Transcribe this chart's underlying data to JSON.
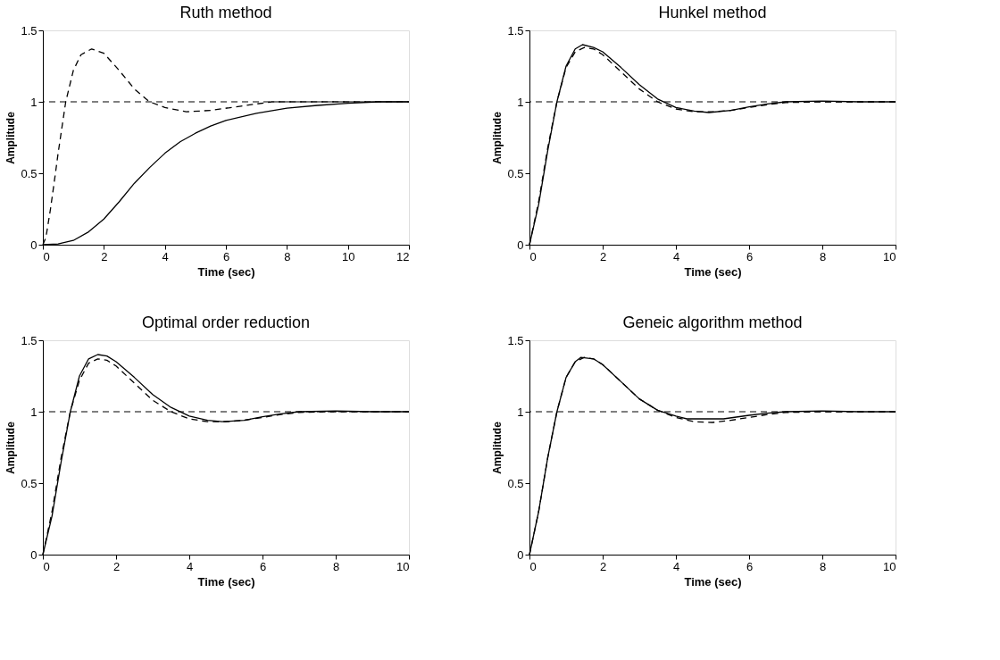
{
  "chart_data": [
    {
      "type": "line",
      "title": "Ruth method",
      "xlabel": "Time (sec)",
      "ylabel": "Amplitude",
      "xlim": [
        0,
        12
      ],
      "ylim": [
        0,
        1.5
      ],
      "xticks": [
        0,
        2,
        4,
        6,
        8,
        10,
        12
      ],
      "yticks": [
        0,
        0.5,
        1,
        1.5
      ],
      "grid": false,
      "marker": "none",
      "series": [
        {
          "color": "#000000",
          "line_style": "dashed",
          "x": [
            0,
            0.1,
            0.25,
            0.4,
            0.5,
            0.75,
            1.0,
            1.25,
            1.6,
            2.0,
            2.5,
            3.0,
            3.5,
            4.0,
            4.7,
            5.5,
            6.5,
            7.5,
            9,
            10.5,
            12
          ],
          "values": [
            0,
            0.05,
            0.25,
            0.48,
            0.64,
            1.0,
            1.22,
            1.33,
            1.37,
            1.34,
            1.22,
            1.09,
            1.0,
            0.96,
            0.93,
            0.94,
            0.97,
            1.0,
            1.0,
            1.0,
            1.0
          ]
        },
        {
          "color": "#000000",
          "line_style": "solid",
          "x": [
            0,
            0.5,
            1,
            1.5,
            2,
            2.5,
            3,
            3.5,
            4,
            4.5,
            5,
            5.5,
            6,
            7,
            8,
            9,
            10,
            11,
            12
          ],
          "values": [
            0,
            0.005,
            0.03,
            0.09,
            0.18,
            0.3,
            0.43,
            0.54,
            0.64,
            0.72,
            0.78,
            0.83,
            0.87,
            0.92,
            0.955,
            0.975,
            0.99,
            1.0,
            1.0
          ]
        }
      ],
      "ref_lines": [
        {
          "axis": "y",
          "value": 1,
          "color": "#000000",
          "line_style": "dashed"
        }
      ]
    },
    {
      "type": "line",
      "title": "Hunkel method",
      "xlabel": "Time (sec)",
      "ylabel": "Amplitude",
      "xlim": [
        0,
        10
      ],
      "ylim": [
        0,
        1.5
      ],
      "xticks": [
        0,
        2,
        4,
        6,
        8,
        10
      ],
      "yticks": [
        0,
        0.5,
        1,
        1.5
      ],
      "grid": false,
      "marker": "none",
      "series": [
        {
          "color": "#000000",
          "line_style": "dashed",
          "x": [
            0,
            0.25,
            0.5,
            0.75,
            1.0,
            1.25,
            1.5,
            1.75,
            2,
            2.5,
            3,
            3.5,
            4,
            4.5,
            5,
            5.5,
            6,
            6.5,
            7,
            8,
            9,
            10
          ],
          "values": [
            0,
            0.3,
            0.68,
            1.0,
            1.24,
            1.35,
            1.38,
            1.37,
            1.33,
            1.21,
            1.09,
            1.0,
            0.95,
            0.93,
            0.93,
            0.94,
            0.96,
            0.98,
            0.995,
            1.0,
            1.0,
            1.0
          ]
        },
        {
          "color": "#000000",
          "line_style": "solid",
          "x": [
            0,
            0.25,
            0.5,
            0.75,
            1.0,
            1.25,
            1.45,
            1.75,
            2,
            2.5,
            3,
            3.5,
            4,
            4.5,
            4.9,
            5.5,
            6,
            6.5,
            7,
            8,
            9,
            10
          ],
          "values": [
            0,
            0.28,
            0.66,
            1.0,
            1.25,
            1.37,
            1.4,
            1.38,
            1.35,
            1.24,
            1.12,
            1.02,
            0.96,
            0.935,
            0.925,
            0.94,
            0.965,
            0.985,
            1.0,
            1.005,
            1.0,
            1.0
          ]
        }
      ],
      "ref_lines": [
        {
          "axis": "y",
          "value": 1,
          "color": "#000000",
          "line_style": "dashed"
        }
      ]
    },
    {
      "type": "line",
      "title": "Optimal order reduction",
      "xlabel": "Time (sec)",
      "ylabel": "Amplitude",
      "xlim": [
        0,
        10
      ],
      "ylim": [
        0,
        1.5
      ],
      "xticks": [
        0,
        2,
        4,
        6,
        8,
        10
      ],
      "yticks": [
        0,
        0.5,
        1,
        1.5
      ],
      "grid": false,
      "marker": "none",
      "series": [
        {
          "color": "#000000",
          "line_style": "dashed",
          "x": [
            0,
            0.25,
            0.5,
            0.75,
            1.0,
            1.25,
            1.5,
            1.75,
            2,
            2.5,
            3,
            3.5,
            4,
            4.5,
            5,
            5.5,
            6,
            6.5,
            7,
            8,
            9,
            10
          ],
          "values": [
            0,
            0.3,
            0.68,
            1.0,
            1.22,
            1.34,
            1.37,
            1.36,
            1.32,
            1.2,
            1.08,
            1.0,
            0.95,
            0.93,
            0.93,
            0.94,
            0.96,
            0.98,
            0.995,
            1.0,
            1.0,
            1.0
          ]
        },
        {
          "color": "#000000",
          "line_style": "solid",
          "x": [
            0,
            0.25,
            0.5,
            0.75,
            1.0,
            1.25,
            1.5,
            1.75,
            2,
            2.5,
            3,
            3.5,
            4,
            4.5,
            4.9,
            5.5,
            6,
            6.5,
            7,
            8,
            9,
            10
          ],
          "values": [
            0,
            0.27,
            0.65,
            1.0,
            1.25,
            1.37,
            1.4,
            1.39,
            1.35,
            1.24,
            1.12,
            1.03,
            0.97,
            0.94,
            0.93,
            0.94,
            0.965,
            0.985,
            1.0,
            1.005,
            1.0,
            1.0
          ]
        }
      ],
      "ref_lines": [
        {
          "axis": "y",
          "value": 1,
          "color": "#000000",
          "line_style": "dashed"
        }
      ]
    },
    {
      "type": "line",
      "title": "Geneic algorithm method",
      "xlabel": "Time (sec)",
      "ylabel": "Amplitude",
      "xlim": [
        0,
        10
      ],
      "ylim": [
        0,
        1.5
      ],
      "xticks": [
        0,
        2,
        4,
        6,
        8,
        10
      ],
      "yticks": [
        0,
        0.5,
        1,
        1.5
      ],
      "grid": false,
      "marker": "none",
      "series": [
        {
          "color": "#000000",
          "line_style": "dashed",
          "x": [
            0,
            0.25,
            0.5,
            0.75,
            1.0,
            1.25,
            1.5,
            1.75,
            2,
            2.5,
            3,
            3.5,
            4,
            4.5,
            5,
            5.5,
            6,
            6.5,
            7,
            8,
            9,
            10
          ],
          "values": [
            0,
            0.3,
            0.68,
            1.0,
            1.24,
            1.35,
            1.38,
            1.37,
            1.33,
            1.21,
            1.09,
            1.01,
            0.96,
            0.93,
            0.925,
            0.94,
            0.96,
            0.98,
            0.995,
            1.0,
            1.0,
            1.0
          ]
        },
        {
          "color": "#000000",
          "line_style": "solid",
          "x": [
            0,
            0.25,
            0.5,
            0.75,
            1.0,
            1.25,
            1.4,
            1.75,
            2,
            2.5,
            3,
            3.5,
            4,
            4.3,
            5.3,
            6,
            6.5,
            7,
            8,
            9,
            10
          ],
          "values": [
            0,
            0.3,
            0.68,
            1.0,
            1.24,
            1.35,
            1.38,
            1.37,
            1.33,
            1.21,
            1.09,
            1.01,
            0.97,
            0.95,
            0.95,
            0.975,
            0.99,
            1.0,
            1.005,
            1.0,
            1.0
          ]
        }
      ],
      "ref_lines": [
        {
          "axis": "y",
          "value": 1,
          "color": "#000000",
          "line_style": "dashed"
        }
      ]
    }
  ]
}
